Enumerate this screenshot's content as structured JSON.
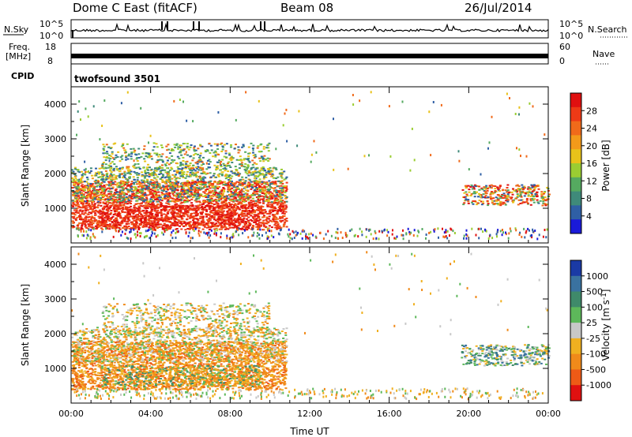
{
  "header": {
    "title": "Dome C East (fitACF)",
    "beam": "Beam 08",
    "date": "26/Jul/2014"
  },
  "nsky": {
    "label": "N.Sky",
    "tick_top": "10^5",
    "tick_bottom": "10^0",
    "right_label": "N.Search",
    "right_tick_top": "10^5",
    "right_tick_bottom": "10^0"
  },
  "freq": {
    "label_line1": "Freq.",
    "label_line2": "[MHz]",
    "tick_top": "18",
    "tick_bottom": "8",
    "right_label": "Nave",
    "right_tick_top": "60",
    "right_tick_bottom": "0"
  },
  "cpid": {
    "label": "CPID",
    "value": "twofsound 3501"
  },
  "chart_data": [
    {
      "type": "heatmap",
      "name_printed": "",
      "xlabel": "",
      "ylabel": "Slant Range [km]",
      "ylim": [
        0,
        4500
      ],
      "yticks": [
        "1000",
        "2000",
        "3000",
        "4000"
      ],
      "xlim_hours": [
        0,
        24
      ],
      "colorbar": {
        "label": "Power [dB]",
        "ticks": [
          "4",
          "8",
          "12",
          "16",
          "20",
          "24",
          "28"
        ],
        "colors": [
          "#1a1ad9",
          "#2f5fa5",
          "#3f8a7a",
          "#55aa60",
          "#9acd32",
          "#e8c21a",
          "#f39a1a",
          "#f06a1a",
          "#ee3a16",
          "#e01010"
        ]
      }
    },
    {
      "type": "heatmap",
      "xlabel": "Time UT",
      "ylabel": "Slant Range [km]",
      "ylim": [
        0,
        4500
      ],
      "yticks": [
        "1000",
        "2000",
        "3000",
        "4000"
      ],
      "xticks": [
        "00:00",
        "04:00",
        "08:00",
        "12:00",
        "16:00",
        "20:00",
        "00:00"
      ],
      "xlim_hours": [
        0,
        24
      ],
      "colorbar": {
        "label": "Velocity [m s-1]",
        "label_main": "Velocity [m s",
        "label_sup": "-1",
        "label_end": "]",
        "ticks": [
          "1000",
          "500",
          "100",
          "25",
          "-25",
          "-100",
          "-500",
          "-1000"
        ],
        "colors": [
          "#1a3aa5",
          "#3a72a0",
          "#3f8a6a",
          "#5db85a",
          "#c8c8c8",
          "#f0b020",
          "#f08a1a",
          "#ee5a16",
          "#e01010"
        ]
      }
    }
  ]
}
